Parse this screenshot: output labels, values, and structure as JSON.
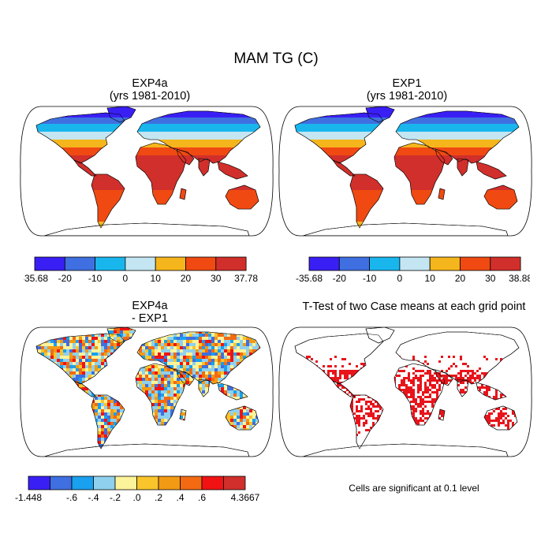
{
  "figure": {
    "title": "MAM TG (C)"
  },
  "panels": [
    {
      "id": "exp4a",
      "title_line1": "EXP4a",
      "title_line2": "(yrs 1981-2010)",
      "colorbar": {
        "labels": [
          "-35.68",
          "-20",
          "-10",
          "0",
          "10",
          "20",
          "30",
          "37.78"
        ],
        "colors": [
          "#3a1ff5",
          "#3f6fe0",
          "#19b6ee",
          "#c3e6f2",
          "#f5b51c",
          "#f04a12",
          "#d12f2b"
        ]
      }
    },
    {
      "id": "exp1",
      "title_line1": "EXP1",
      "title_line2": "(yrs 1981-2010)",
      "colorbar": {
        "labels": [
          "-35.68",
          "-20",
          "-10",
          "0",
          "10",
          "20",
          "30",
          "38.88"
        ],
        "colors": [
          "#3a1ff5",
          "#3f6fe0",
          "#19b6ee",
          "#c3e6f2",
          "#f5b51c",
          "#f04a12",
          "#d12f2b"
        ]
      }
    },
    {
      "id": "diff",
      "title_line1": "EXP4a",
      "title_line2": "- EXP1",
      "colorbar": {
        "labels": [
          "-1.448",
          "-.6",
          "-.4",
          "-.2",
          ".0",
          ".2",
          ".4",
          ".6",
          "4.3667"
        ],
        "colors": [
          "#3a1ff5",
          "#3f6fe0",
          "#19a0ee",
          "#8fd0ee",
          "#fdf39a",
          "#f9c52a",
          "#f39a14",
          "#f36a12",
          "#f11313",
          "#d12f2b"
        ]
      }
    },
    {
      "id": "ttest",
      "title_line1": "T-Test of two Case means at each grid point",
      "note": "Cells are significant at 0.1 level",
      "sig_color": "#e8141b"
    }
  ]
}
